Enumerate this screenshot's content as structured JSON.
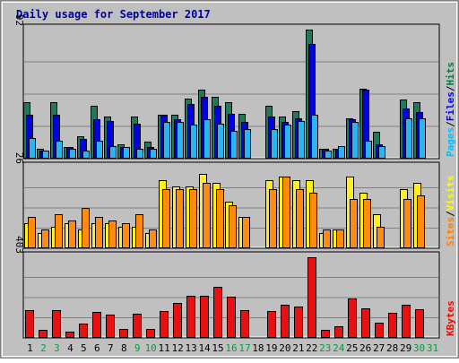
{
  "chart_data": {
    "type": "bar",
    "title": "Daily usage for September 2017",
    "categories": [
      "1",
      "2",
      "3",
      "4",
      "5",
      "6",
      "7",
      "8",
      "9",
      "10",
      "11",
      "12",
      "13",
      "14",
      "15",
      "16",
      "17",
      "18",
      "19",
      "20",
      "21",
      "22",
      "23",
      "24",
      "25",
      "26",
      "27",
      "28",
      "29",
      "30",
      "31"
    ],
    "weekend_days": [
      "2",
      "3",
      "9",
      "10",
      "16",
      "17",
      "23",
      "24",
      "30",
      "31"
    ],
    "panels": [
      {
        "id": "hits",
        "max_label": "92",
        "ymax": 92,
        "axis_labels": [
          {
            "text": "Pages",
            "color": "#00c0ff"
          },
          {
            "text": "Files",
            "color": "#0000ff"
          },
          {
            "text": "Hits",
            "color": "#008040"
          }
        ],
        "series": [
          {
            "name": "Hits",
            "color": "#1e7a5a",
            "values": [
              40,
              7,
              40,
              8,
              16,
              38,
              30,
              10,
              30,
              12,
              31,
              31,
              43,
              49,
              44,
              40,
              32,
              0,
              38,
              30,
              34,
              92,
              7,
              7,
              29,
              50,
              19,
              0,
              42,
              40,
              0
            ]
          },
          {
            "name": "Files",
            "color": "#0000e0",
            "values": [
              31,
              6,
              31,
              8,
              14,
              28,
              27,
              8,
              25,
              8,
              31,
              28,
              39,
              44,
              38,
              32,
              26,
              0,
              30,
              26,
              29,
              82,
              7,
              7,
              28,
              49,
              10,
              0,
              36,
              33,
              0
            ]
          },
          {
            "name": "Pages",
            "color": "#2ab4f0",
            "values": [
              15,
              6,
              13,
              7,
              6,
              13,
              9,
              8,
              7,
              7,
              26,
              26,
              24,
              28,
              25,
              20,
              21,
              0,
              21,
              24,
              27,
              31,
              6,
              9,
              26,
              13,
              9,
              0,
              29,
              29,
              0
            ]
          }
        ]
      },
      {
        "id": "visits",
        "max_label": "26",
        "ymax": 26,
        "axis_labels": [
          {
            "text": "Sites",
            "color": "#ff8000"
          },
          {
            "text": "Visits",
            "color": "#ffff00"
          }
        ],
        "series": [
          {
            "name": "Visits",
            "color": "#ffee22",
            "values": [
              8,
              5,
              7,
              8,
              6,
              8,
              8,
              7,
              7,
              5,
              22,
              20,
              20,
              24,
              21,
              15,
              10,
              0,
              22,
              23,
              22,
              22,
              5,
              6,
              23,
              18,
              11,
              0,
              19,
              21,
              0
            ]
          },
          {
            "name": "Sites",
            "color": "#ff8c10",
            "values": [
              10,
              6,
              11,
              9,
              13,
              10,
              9,
              8,
              11,
              6,
              19,
              19,
              19,
              21,
              19,
              14,
              10,
              0,
              19,
              23,
              19,
              18,
              6,
              6,
              16,
              16,
              7,
              0,
              16,
              17,
              0
            ]
          }
        ]
      },
      {
        "id": "kbytes",
        "max_label": "403",
        "ymax": 403,
        "axis_labels": [
          {
            "text": "KBytes",
            "color": "#ff0000"
          }
        ],
        "series": [
          {
            "name": "KBytes",
            "color": "#e81010",
            "values": [
              140,
              40,
              140,
              30,
              70,
              130,
              115,
              45,
              120,
              45,
              135,
              175,
              210,
              210,
              255,
              205,
              140,
              0,
              135,
              165,
              155,
              403,
              40,
              60,
              195,
              150,
              75,
              125,
              165,
              145,
              0
            ]
          }
        ]
      }
    ]
  }
}
